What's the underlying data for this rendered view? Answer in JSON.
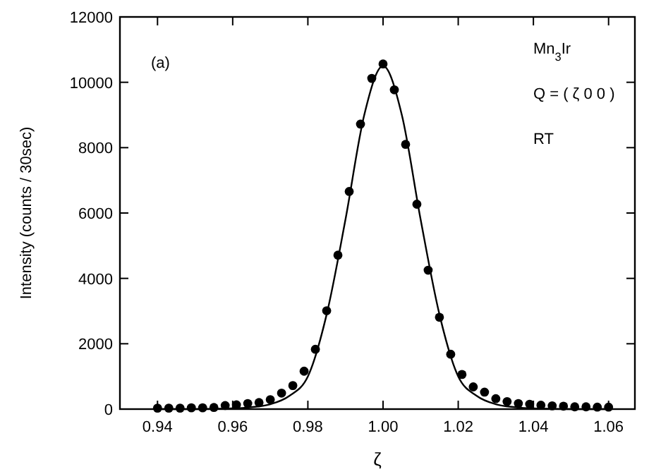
{
  "chart_data": {
    "type": "scatter",
    "xlabel": "ζ",
    "ylabel": "Intensity (counts / 30sec)",
    "xlim": [
      0.93,
      1.067
    ],
    "ylim": [
      0,
      12000
    ],
    "xticks": [
      0.94,
      0.96,
      0.98,
      {
        "value": 1,
        "label": "1.00"
      },
      1.02,
      1.04,
      1.06
    ],
    "yticks": [
      0,
      2000,
      4000,
      6000,
      8000,
      10000,
      12000
    ],
    "grid": false,
    "annotations": [
      "(a)",
      "Mn$_{3}$Ir",
      "Q = ( ζ 0 0 )",
      "RT"
    ],
    "series": [
      {
        "marker": "circle",
        "color": "#000000",
        "x": [
          0.94,
          0.943,
          0.946,
          0.949,
          0.952,
          0.955,
          0.958,
          0.961,
          0.964,
          0.967,
          0.97,
          0.973,
          0.976,
          0.979,
          0.982,
          0.985,
          0.988,
          0.991,
          0.994,
          0.997,
          1.0,
          1.003,
          1.006,
          1.009,
          1.012,
          1.015,
          1.018,
          1.021,
          1.024,
          1.027,
          1.03,
          1.033,
          1.036,
          1.039,
          1.042,
          1.045,
          1.048,
          1.051,
          1.054,
          1.057,
          1.06
        ],
        "values": [
          30,
          30,
          30,
          40,
          40,
          50,
          110,
          130,
          170,
          200,
          290,
          490,
          720,
          1160,
          1830,
          3010,
          4710,
          6660,
          8720,
          10120,
          10560,
          9770,
          8100,
          6270,
          4250,
          2810,
          1680,
          1060,
          680,
          520,
          320,
          230,
          170,
          150,
          120,
          100,
          90,
          70,
          70,
          60,
          60
        ]
      },
      {
        "type": "line",
        "color": "#000000",
        "line_style": "solid",
        "x": [
          0.94,
          0.95,
          0.96,
          0.965,
          0.97,
          0.975,
          0.98,
          0.985,
          0.99,
          0.995,
          1.0,
          1.005,
          1.01,
          1.015,
          1.02,
          1.025,
          1.03,
          1.035,
          1.04,
          1.05,
          1.06
        ],
        "values": [
          0,
          0,
          20,
          60,
          150,
          400,
          1000,
          2900,
          5800,
          9000,
          10500,
          9000,
          5800,
          2900,
          1000,
          400,
          150,
          60,
          20,
          0,
          0
        ]
      }
    ]
  }
}
